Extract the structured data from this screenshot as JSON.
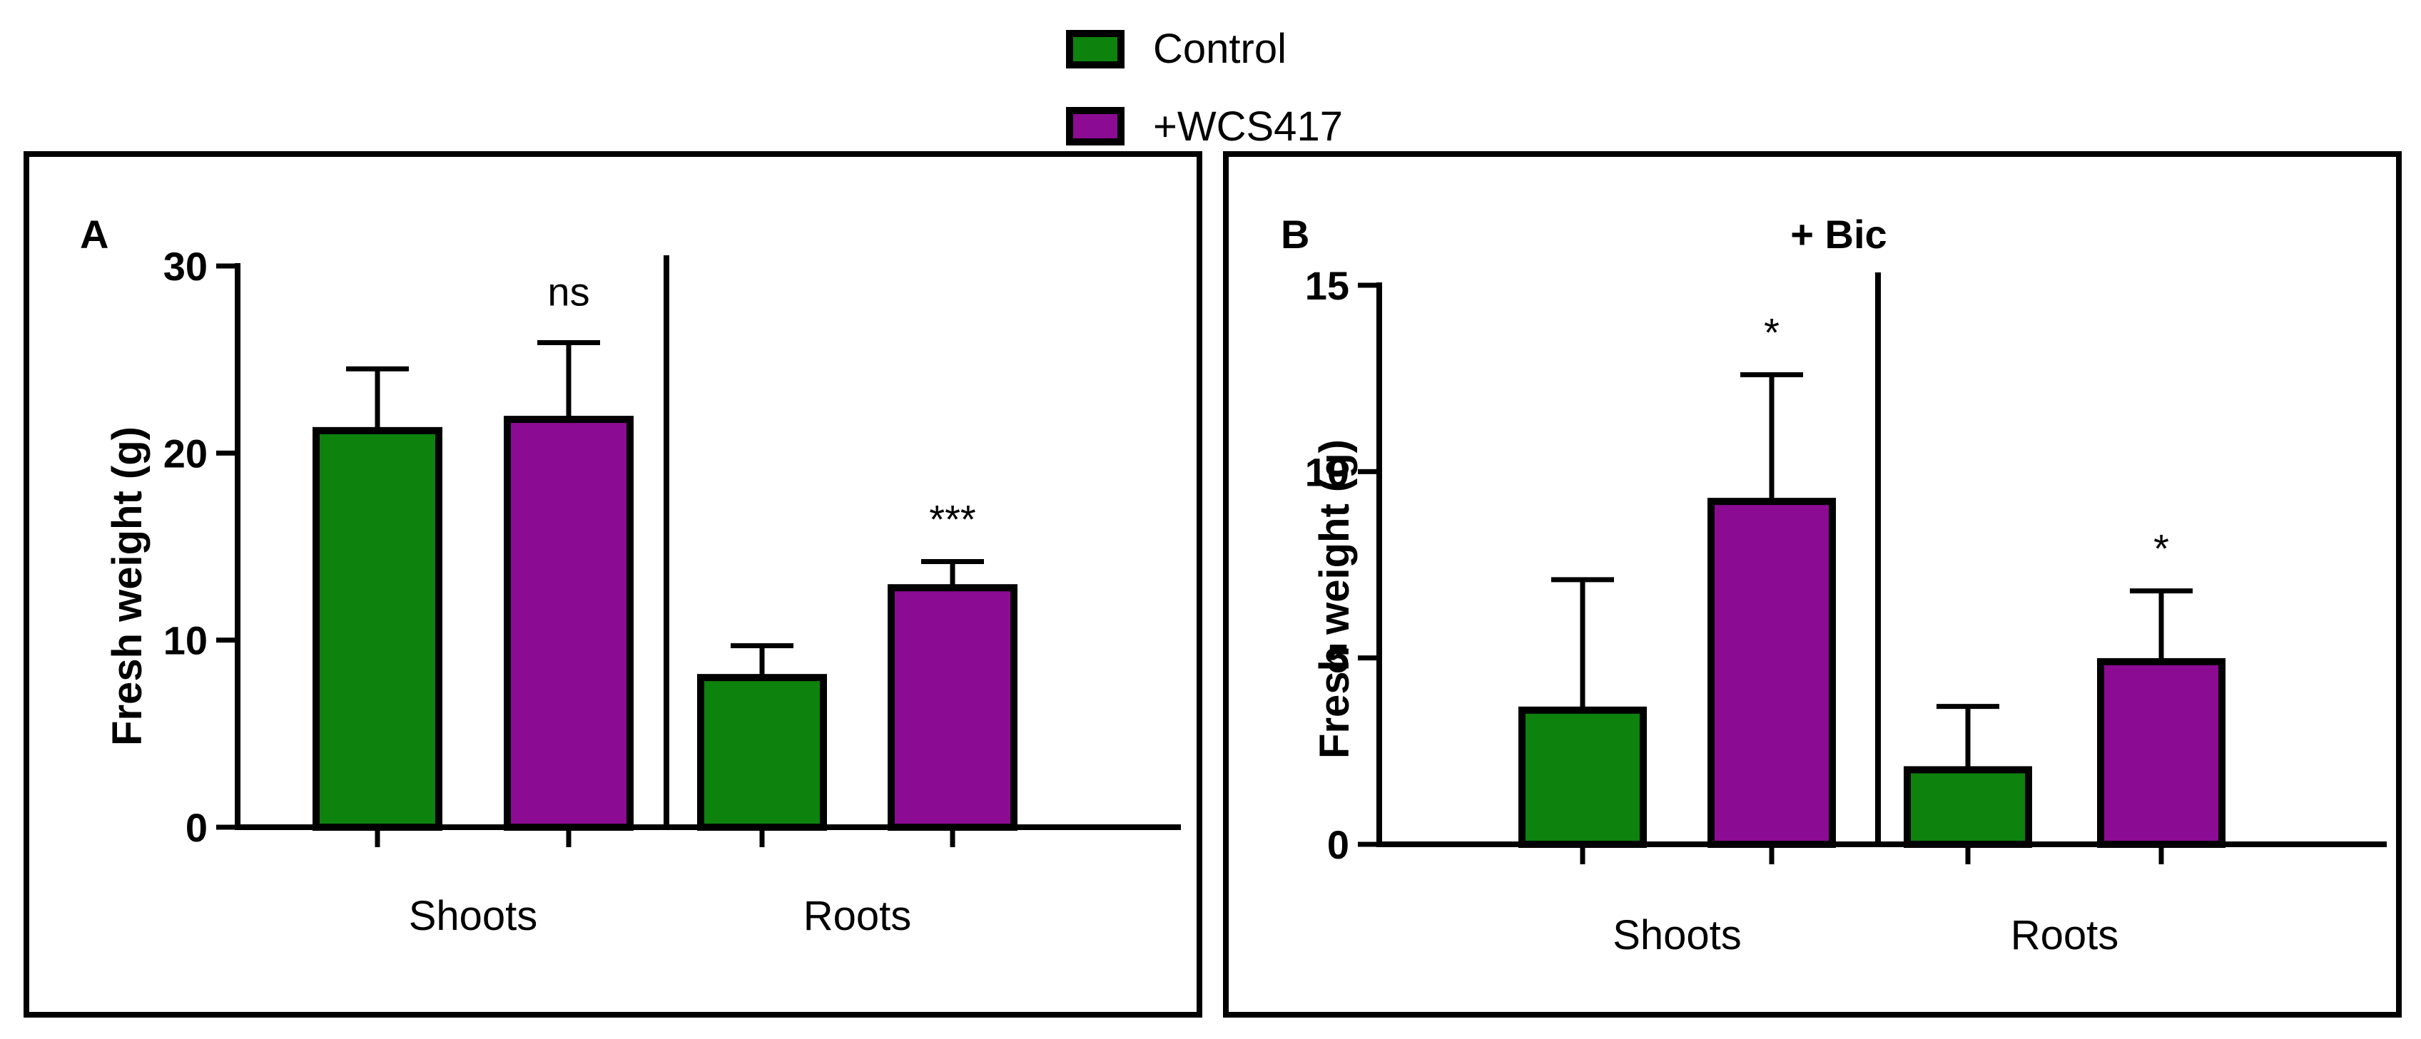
{
  "colors": {
    "control": "#0d820d",
    "treatment": "#8c0b93",
    "stroke": "#000000"
  },
  "legend": [
    {
      "label": "Control",
      "color": "#0d820d"
    },
    {
      "label": "+WCS417",
      "color": "#8c0b93"
    }
  ],
  "chart_data": [
    {
      "type": "bar",
      "panel_label": "A",
      "title": "",
      "ylabel": "Fresh weight (g)",
      "ylim": [
        0,
        30
      ],
      "yticks": [
        0,
        10,
        20,
        30
      ],
      "groups": [
        "Shoots",
        "Roots"
      ],
      "series": [
        {
          "name": "Control",
          "values": [
            21.2,
            8.0
          ],
          "errors": [
            3.3,
            1.7
          ]
        },
        {
          "name": "+WCS417",
          "values": [
            21.8,
            12.8
          ],
          "errors": [
            4.1,
            1.4
          ]
        }
      ],
      "annotations": [
        {
          "group": 0,
          "series": 1,
          "text": "ns"
        },
        {
          "group": 1,
          "series": 1,
          "text": "***"
        }
      ]
    },
    {
      "type": "bar",
      "panel_label": "B",
      "title": "+ Bic",
      "ylabel": "Fresh weight (g)",
      "ylim": [
        0,
        15
      ],
      "yticks": [
        0,
        5,
        10,
        15
      ],
      "groups": [
        "Shoots",
        "Roots"
      ],
      "series": [
        {
          "name": "Control",
          "values": [
            3.6,
            2.0
          ],
          "errors": [
            3.5,
            1.7
          ]
        },
        {
          "name": "+WCS417",
          "values": [
            9.2,
            4.9
          ],
          "errors": [
            3.4,
            1.9
          ]
        }
      ],
      "annotations": [
        {
          "group": 0,
          "series": 1,
          "text": "*"
        },
        {
          "group": 1,
          "series": 1,
          "text": "*"
        }
      ]
    }
  ]
}
